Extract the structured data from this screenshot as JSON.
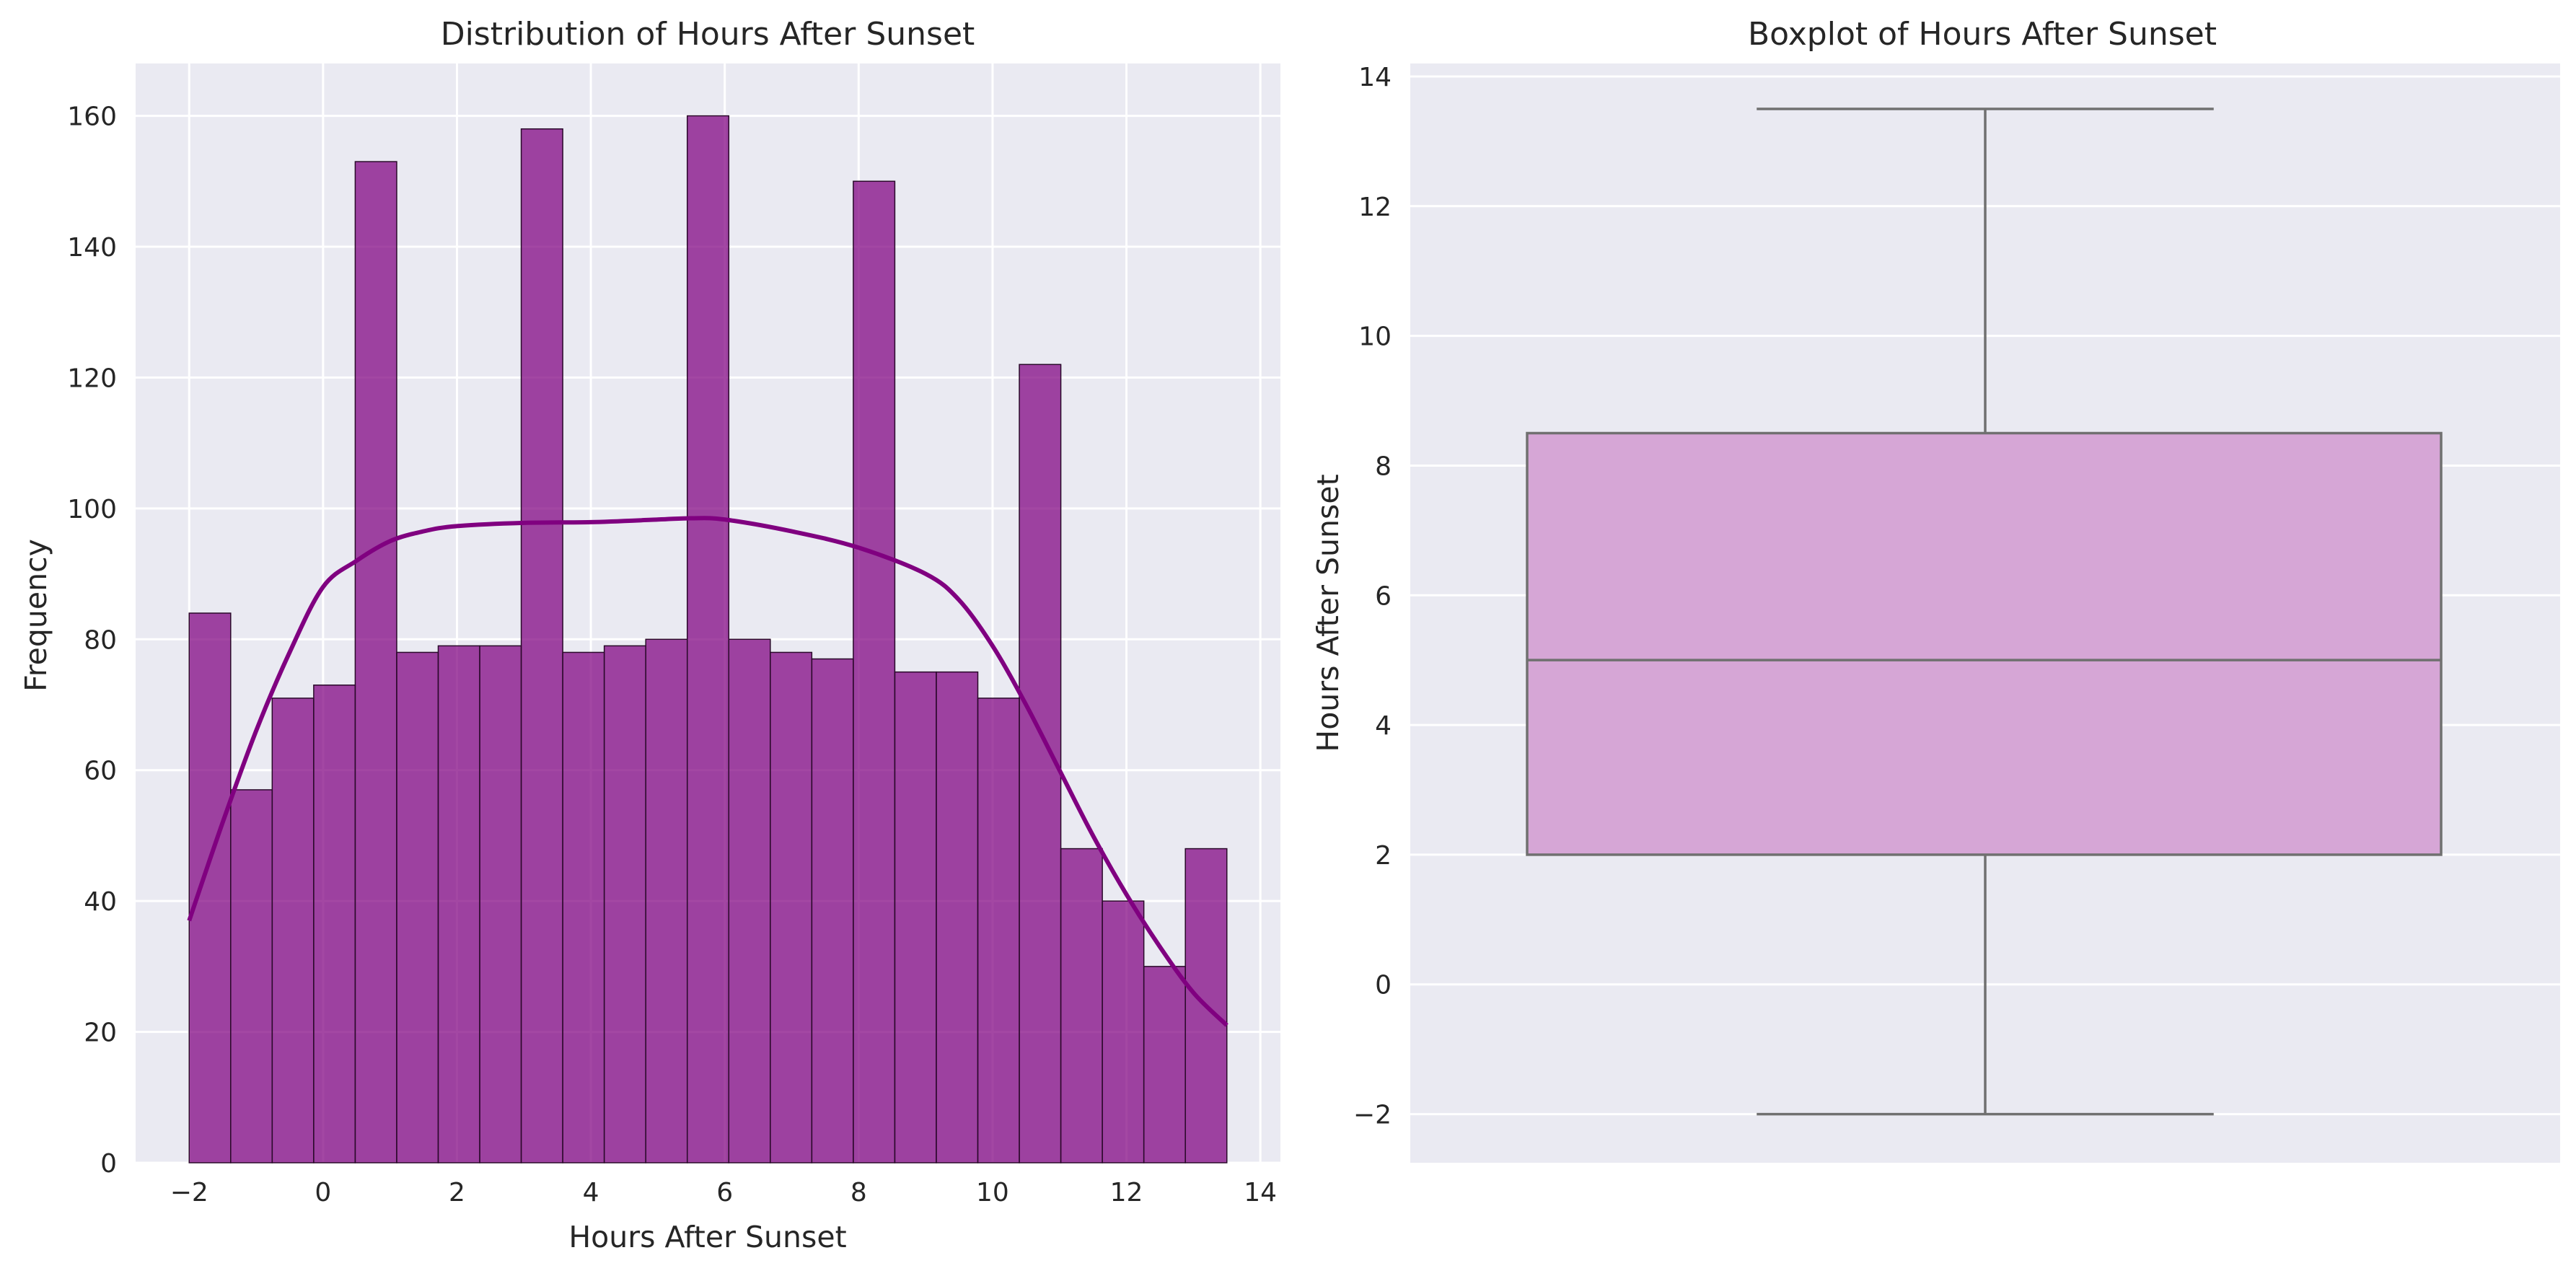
{
  "figure": {
    "background": "#ffffff"
  },
  "chart_data": [
    {
      "type": "bar",
      "subtype": "histogram_with_kde",
      "title": "Distribution of Hours After Sunset",
      "xlabel": "Hours After Sunset",
      "ylabel": "Frequency",
      "xlim": [
        -2.8,
        14.3
      ],
      "ylim": [
        0,
        168
      ],
      "xticks": [
        -2,
        0,
        2,
        4,
        6,
        8,
        10,
        12,
        14
      ],
      "yticks": [
        0,
        20,
        40,
        60,
        80,
        100,
        120,
        140,
        160
      ],
      "bin_edges": [
        -2.0,
        -1.38,
        -0.76,
        -0.14,
        0.48,
        1.1,
        1.72,
        2.34,
        2.96,
        3.58,
        4.2,
        4.82,
        5.44,
        6.06,
        6.68,
        7.3,
        7.92,
        8.54,
        9.16,
        9.78,
        10.4,
        11.02,
        11.64,
        12.26,
        12.88,
        13.5
      ],
      "values": [
        84,
        57,
        71,
        73,
        153,
        78,
        79,
        79,
        158,
        78,
        79,
        80,
        160,
        80,
        78,
        77,
        150,
        75,
        75,
        71,
        122,
        48,
        40,
        30,
        48
      ],
      "kde": {
        "x": [
          -2.0,
          -1.5,
          -1.0,
          -0.5,
          0.0,
          0.5,
          1.0,
          1.5,
          2.0,
          3.0,
          4.0,
          5.0,
          5.5,
          6.0,
          7.0,
          8.0,
          9.0,
          9.5,
          10.0,
          10.5,
          11.0,
          11.5,
          12.0,
          12.5,
          13.0,
          13.5
        ],
        "y": [
          37,
          52,
          66,
          78,
          88,
          92,
          95,
          96.5,
          97.3,
          97.8,
          97.9,
          98.3,
          98.5,
          98.3,
          96.5,
          94,
          90,
          86,
          79,
          70,
          60,
          50,
          41,
          33,
          26,
          21
        ]
      },
      "style": {
        "bar_color": "#800080",
        "bar_opacity": 0.72,
        "edge_color": "#2a0a2a",
        "kde_color": "#800080",
        "plot_bg": "#eaeaf2",
        "grid_color": "#ffffff"
      }
    },
    {
      "type": "box",
      "title": "Boxplot of Hours After Sunset",
      "xlabel": "",
      "ylabel": "Hours After Sunset",
      "ylim": [
        -2.75,
        14.2
      ],
      "yticks": [
        -2,
        0,
        2,
        4,
        6,
        8,
        10,
        12,
        14
      ],
      "stats": {
        "whisker_low": -2,
        "q1": 2,
        "median": 5,
        "q3": 8.5,
        "whisker_high": 13.5
      },
      "style": {
        "box_color": "#d6a6d6",
        "line_color": "#707070",
        "plot_bg": "#eaeaf2",
        "grid_color": "#ffffff"
      }
    }
  ]
}
